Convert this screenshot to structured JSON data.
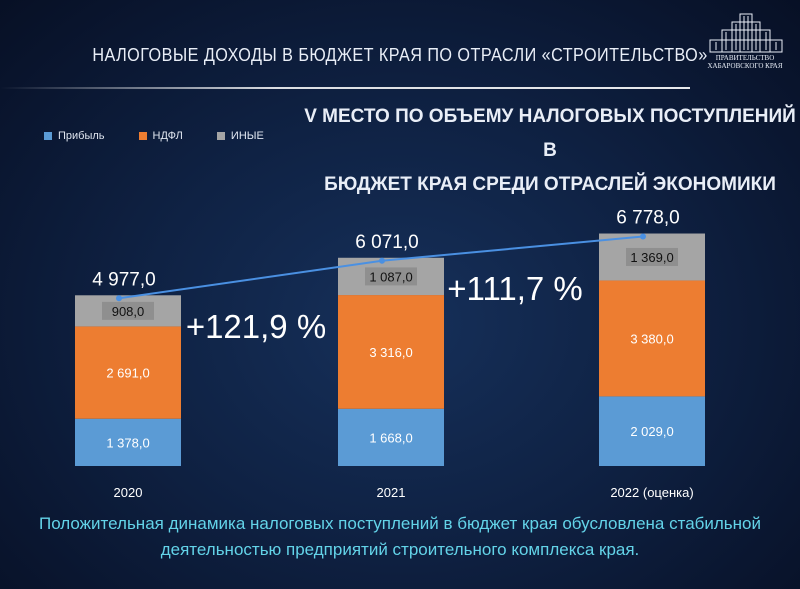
{
  "header": {
    "title": "НАЛОГОВЫЕ ДОХОДЫ В БЮДЖЕТ КРАЯ ПО ОТРАСЛИ «СТРОИТЕЛЬСТВО»",
    "logo_line1": "ПРАВИТЕЛЬСТВО",
    "logo_line2": "ХАБАРОВСКОГО КРАЯ",
    "logo_icon": "government-building-icon"
  },
  "rank": {
    "line1": "V МЕСТО ПО ОБЪЕМУ  НАЛОГОВЫХ  ПОСТУПЛЕНИЙ В",
    "line2": "БЮДЖЕТ КРАЯ  СРЕДИ ОТРАСЛЕЙ  ЭКОНОМИКИ"
  },
  "footer": {
    "line1": "Положительная динамика налоговых поступлений в бюджет края обусловлена стабильной",
    "line2": "деятельностью предприятий строительного комплекса края."
  },
  "colors": {
    "profit": "#5b9bd5",
    "ndfl": "#ed7d31",
    "other": "#a5a5a5",
    "trend": "#4a90e2"
  },
  "chart_data": {
    "type": "bar",
    "stacked": true,
    "categories": [
      "2020",
      "2021",
      "2022 (оценка)"
    ],
    "series": [
      {
        "name": "Прибыль",
        "values": [
          1378.0,
          1668.0,
          2029.0
        ],
        "labels": [
          "1 378,0",
          "1 668,0",
          "2 029,0"
        ]
      },
      {
        "name": "НДФЛ",
        "values": [
          2691.0,
          3316.0,
          3380.0
        ],
        "labels": [
          "2 691,0",
          "3 316,0",
          "3 380,0"
        ]
      },
      {
        "name": "ИНЫЕ",
        "values": [
          908.0,
          1087.0,
          1369.0
        ],
        "labels": [
          "908,0",
          "1 087,0",
          "1 369,0"
        ]
      }
    ],
    "totals": [
      4977.0,
      6071.0,
      6778.0
    ],
    "total_labels": [
      "4 977,0",
      "6 071,0",
      "6 778,0"
    ],
    "growth_labels": [
      "+121,9 %",
      "+111,7 %"
    ],
    "legend_position": "top-left",
    "grid": false,
    "ylim": [
      0,
      7000
    ]
  }
}
